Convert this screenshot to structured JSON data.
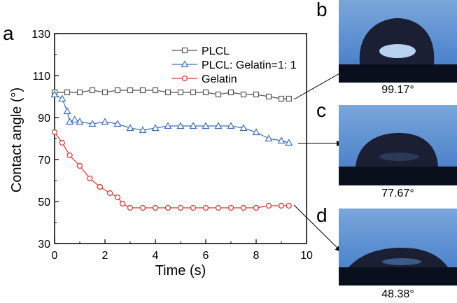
{
  "panels": {
    "a": "a",
    "b": "b",
    "c": "c",
    "d": "d"
  },
  "photos": [
    {
      "letter": "b",
      "angle_label": "99.17°",
      "contact_angle_deg": 99.17
    },
    {
      "letter": "c",
      "angle_label": "77.67°",
      "contact_angle_deg": 77.67
    },
    {
      "letter": "d",
      "angle_label": "48.38°",
      "contact_angle_deg": 48.38
    }
  ],
  "chart_data": {
    "type": "line",
    "xlabel": "Time (s)",
    "ylabel": "Contact angle (°)",
    "xlim": [
      0,
      10
    ],
    "ylim": [
      30,
      130
    ],
    "xticks": [
      0,
      2,
      4,
      6,
      8,
      10
    ],
    "yticks": [
      30,
      50,
      70,
      90,
      110,
      130
    ],
    "legend_position": "top-right",
    "grid": false,
    "series": [
      {
        "name": "PLCL",
        "marker": "square",
        "color": "#555555",
        "x": [
          0,
          0.5,
          1,
          1.5,
          2,
          2.5,
          3,
          3.5,
          4,
          4.5,
          5,
          5.5,
          6,
          6.5,
          7,
          7.5,
          8,
          8.5,
          9,
          9.3
        ],
        "y": [
          102,
          102,
          102,
          103,
          102,
          103,
          103,
          103,
          103,
          102,
          102,
          102,
          102,
          101,
          102,
          101,
          101,
          100,
          99,
          99
        ]
      },
      {
        "name": "PLCL: Gelatin=1: 1",
        "marker": "triangle",
        "color": "#3a6fbf",
        "x": [
          0,
          0.3,
          0.5,
          0.6,
          0.8,
          1,
          1.5,
          2,
          2.5,
          3,
          3.5,
          4,
          4.5,
          5,
          5.5,
          6,
          6.5,
          7,
          7.5,
          8,
          8.5,
          9,
          9.3
        ],
        "y": [
          101,
          99,
          93,
          88,
          89,
          88,
          87,
          88,
          87,
          85,
          84,
          85,
          86,
          86,
          86,
          86,
          86,
          86,
          85,
          83,
          80,
          79,
          78
        ]
      },
      {
        "name": "Gelatin",
        "marker": "circle",
        "color": "#e0302c",
        "x": [
          0,
          0.3,
          0.6,
          1,
          1.4,
          1.8,
          2.2,
          2.5,
          2.7,
          3,
          3.5,
          4,
          4.5,
          5,
          5.5,
          6,
          6.5,
          7,
          7.5,
          8,
          8.5,
          9,
          9.3
        ],
        "y": [
          83,
          78,
          72,
          67,
          61,
          57,
          54,
          52,
          49,
          47,
          47,
          47,
          47,
          47,
          47,
          47,
          47,
          47,
          47,
          47,
          48,
          48,
          48
        ]
      }
    ]
  }
}
